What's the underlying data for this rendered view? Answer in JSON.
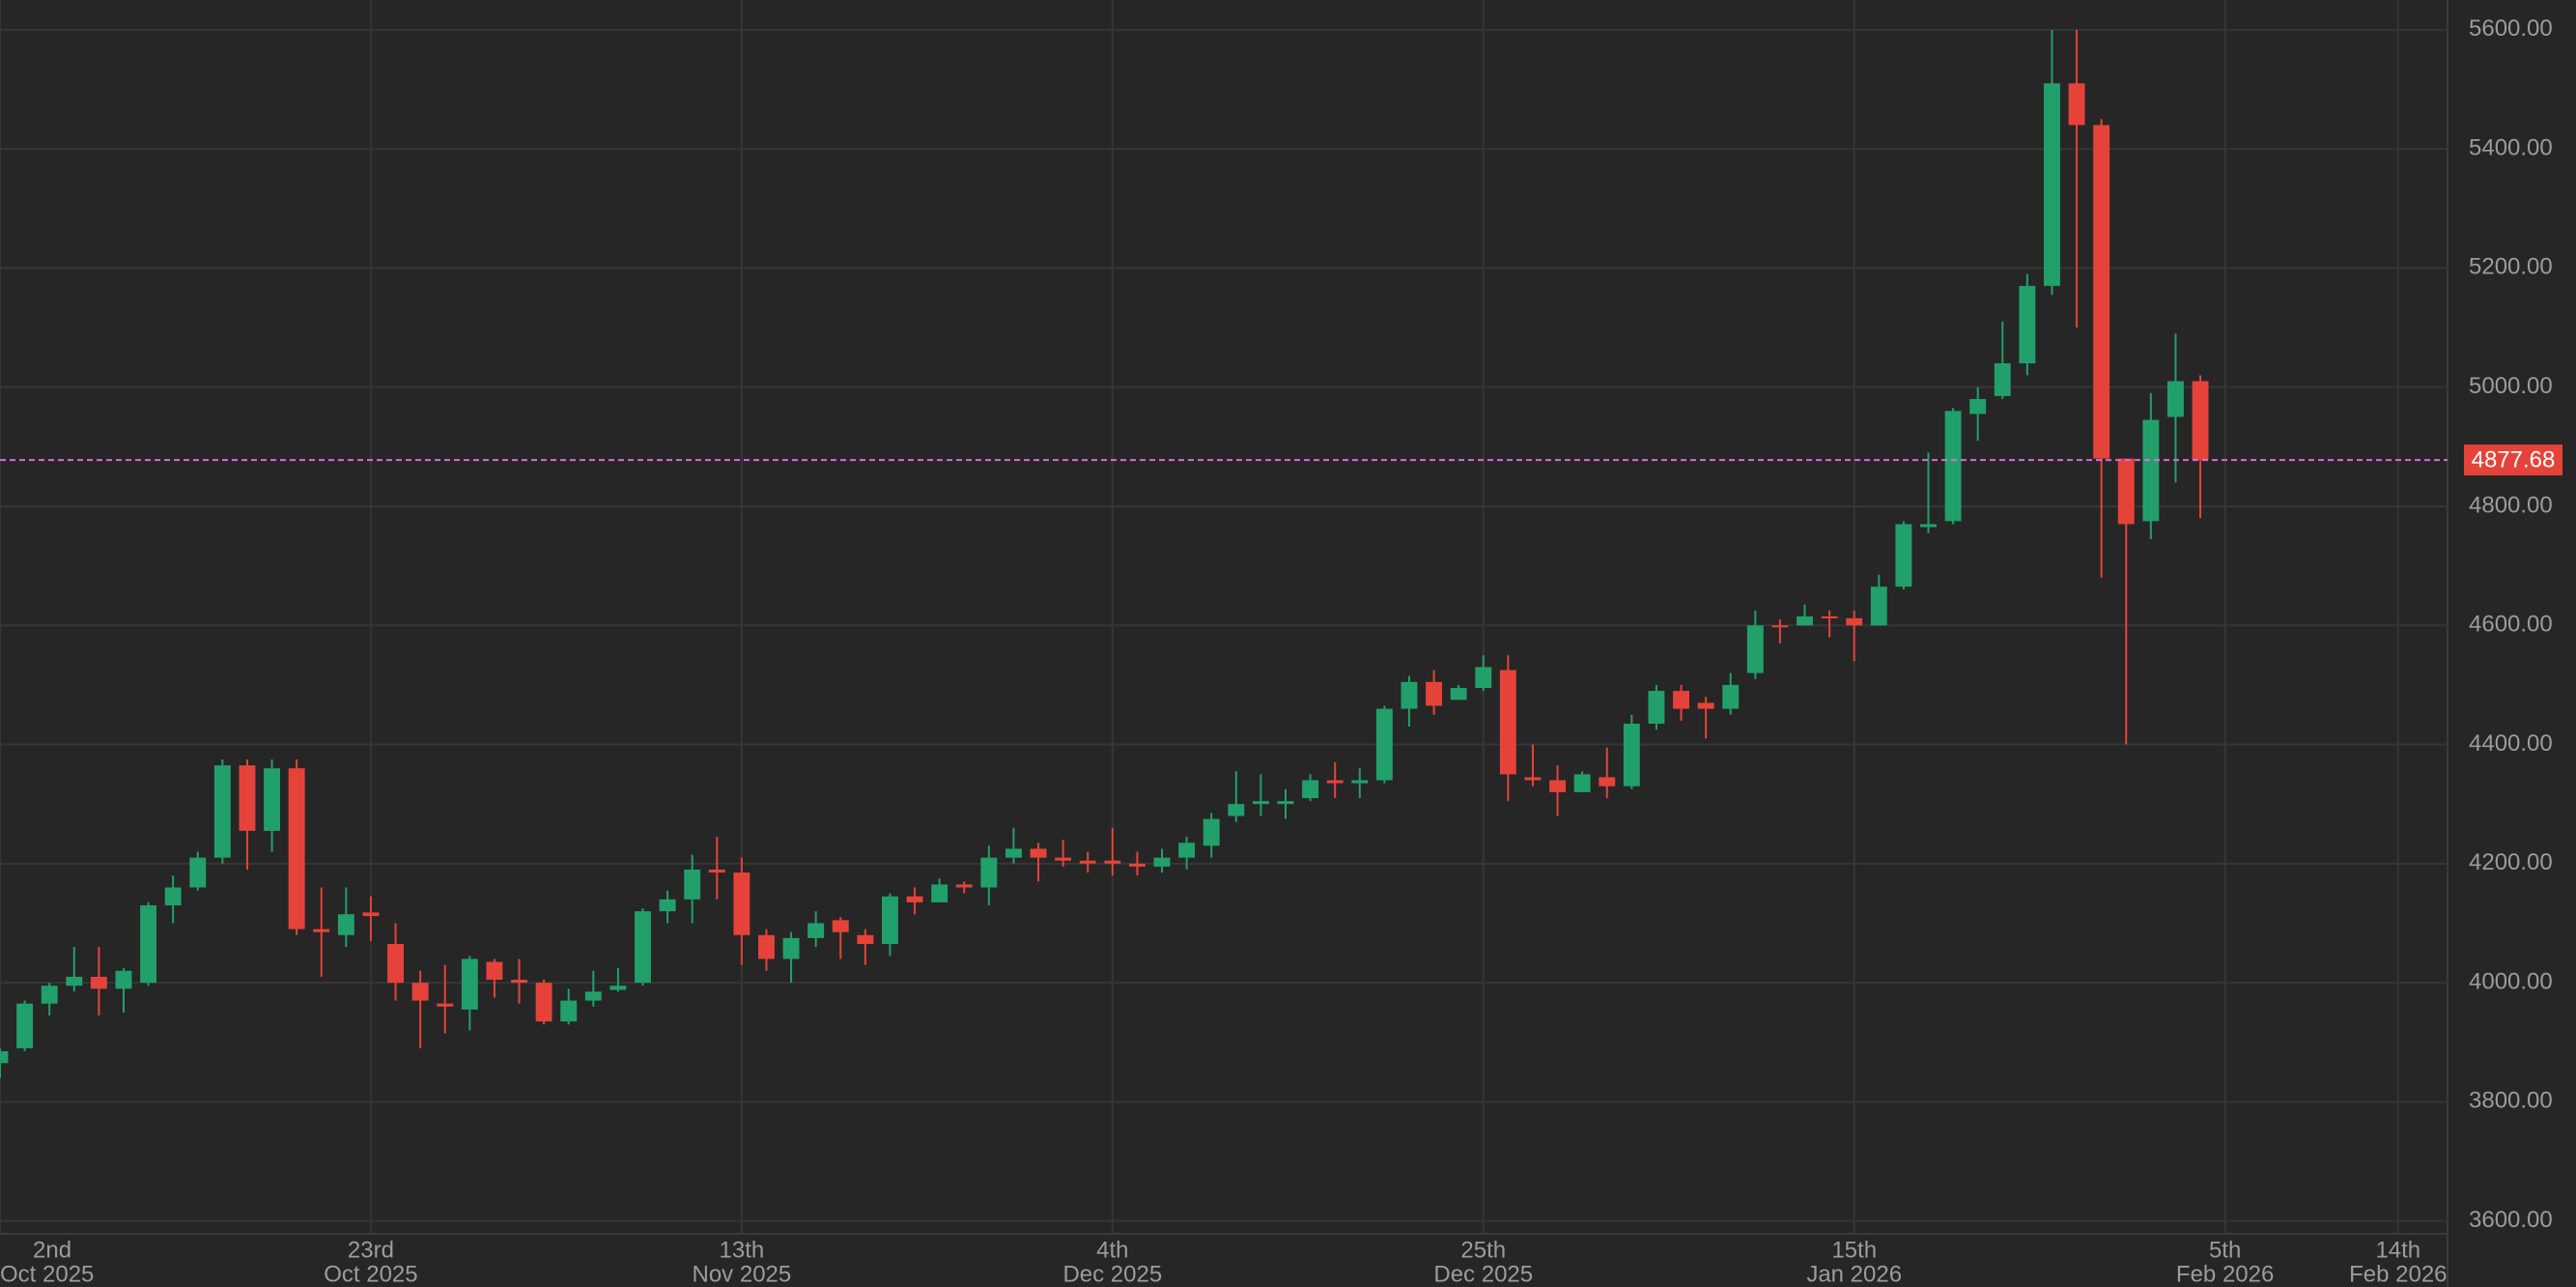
{
  "chart_data": {
    "type": "candlestick",
    "categories": [
      "2nd",
      null,
      null,
      null,
      null,
      null,
      null,
      null,
      null,
      null,
      null,
      null,
      null,
      null,
      null,
      "23rd",
      null,
      null,
      null,
      null,
      null,
      null,
      null,
      null,
      null,
      null,
      null,
      null,
      null,
      null,
      "13th",
      null,
      null,
      null,
      null,
      null,
      null,
      null,
      null,
      null,
      null,
      null,
      null,
      null,
      null,
      "4th",
      null,
      null,
      null,
      null,
      null,
      null,
      null,
      null,
      null,
      null,
      null,
      null,
      null,
      null,
      "25th",
      null,
      null,
      null,
      null,
      null,
      null,
      null,
      null,
      null,
      null,
      null,
      null,
      null,
      null,
      "15th",
      null,
      null,
      null,
      null,
      null,
      null,
      null,
      null,
      null,
      null,
      null,
      null,
      null,
      null,
      "5th",
      null,
      null,
      null,
      null,
      null,
      null,
      "14th",
      null
    ],
    "category_groups": [
      "Oct 2025",
      null,
      null,
      null,
      null,
      null,
      null,
      null,
      null,
      null,
      null,
      null,
      null,
      null,
      null,
      "Oct 2025",
      null,
      null,
      null,
      null,
      null,
      null,
      null,
      null,
      null,
      null,
      null,
      null,
      null,
      null,
      "Nov 2025",
      null,
      null,
      null,
      null,
      null,
      null,
      null,
      null,
      null,
      null,
      null,
      null,
      null,
      null,
      "Dec 2025",
      null,
      null,
      null,
      null,
      null,
      null,
      null,
      null,
      null,
      null,
      null,
      null,
      null,
      null,
      "Dec 2025",
      null,
      null,
      null,
      null,
      null,
      null,
      null,
      null,
      null,
      null,
      null,
      null,
      null,
      null,
      "Jan 2026",
      null,
      null,
      null,
      null,
      null,
      null,
      null,
      null,
      null,
      null,
      null,
      null,
      null,
      null,
      "Feb 2026",
      null,
      null,
      null,
      null,
      null,
      null,
      "Feb 2026",
      null
    ],
    "open": [
      3865,
      3890,
      3965,
      3995,
      4010,
      3990,
      4000,
      4130,
      4160,
      4210,
      4365,
      4255,
      4360,
      4090,
      4080,
      4118,
      4065,
      4000,
      3965,
      3955,
      4035,
      4005,
      4000,
      3935,
      3970,
      3988,
      4000,
      4120,
      4140,
      4190,
      4185,
      4080,
      4040,
      4075,
      4105,
      4080,
      4065,
      4145,
      4135,
      4165,
      4160,
      4210,
      4225,
      4210,
      4205,
      4205,
      4200,
      4195,
      4210,
      4230,
      4280,
      4300,
      4300,
      4310,
      4340,
      4335,
      4340,
      4460,
      4505,
      4475,
      4495,
      4525,
      4345,
      4340,
      4320,
      4345,
      4330,
      4435,
      4490,
      4470,
      4460,
      4520,
      4600,
      4600,
      4615,
      4612,
      4600,
      4665,
      4765,
      4775,
      4955,
      4985,
      5040,
      5170,
      5510,
      5440,
      4880,
      4775,
      4950,
      5010,
      null,
      null,
      null,
      null,
      null,
      null,
      null,
      null,
      null
    ],
    "high": [
      3890,
      3970,
      4000,
      4060,
      4060,
      4025,
      4135,
      4180,
      4220,
      4375,
      4375,
      4375,
      4375,
      4160,
      4160,
      4145,
      4100,
      4020,
      4030,
      4045,
      4040,
      4040,
      4005,
      3990,
      4020,
      4025,
      4125,
      4155,
      4215,
      4245,
      4210,
      4090,
      4085,
      4120,
      4110,
      4090,
      4150,
      4160,
      4175,
      4170,
      4230,
      4260,
      4235,
      4240,
      4220,
      4260,
      4220,
      4225,
      4245,
      4285,
      4355,
      4350,
      4325,
      4350,
      4370,
      4360,
      4465,
      4515,
      4525,
      4500,
      4550,
      4550,
      4400,
      4365,
      4355,
      4395,
      4450,
      4500,
      4500,
      4480,
      4520,
      4625,
      4610,
      4635,
      4625,
      4625,
      4685,
      4775,
      4890,
      4965,
      5000,
      5110,
      5190,
      5600,
      5600,
      5450,
      4880,
      4990,
      5090,
      5020,
      null,
      null,
      null,
      null,
      null,
      null,
      null,
      null,
      null
    ],
    "low": [
      3840,
      3885,
      3945,
      3985,
      3945,
      3950,
      3995,
      4100,
      4155,
      4200,
      4190,
      4220,
      4080,
      4010,
      4060,
      4070,
      3970,
      3890,
      3915,
      3920,
      3975,
      3965,
      3930,
      3930,
      3960,
      3985,
      3995,
      4100,
      4100,
      4140,
      4030,
      4020,
      4000,
      4060,
      4040,
      4030,
      4045,
      4115,
      4135,
      4150,
      4130,
      4200,
      4170,
      4195,
      4185,
      4180,
      4180,
      4185,
      4190,
      4210,
      4270,
      4280,
      4275,
      4305,
      4310,
      4310,
      4335,
      4430,
      4450,
      4475,
      4490,
      4305,
      4330,
      4280,
      4320,
      4310,
      4325,
      4425,
      4440,
      4410,
      4450,
      4510,
      4570,
      4600,
      4580,
      4540,
      4600,
      4660,
      4755,
      4770,
      4910,
      4980,
      5020,
      5155,
      5100,
      4680,
      4400,
      4745,
      4840,
      4780,
      null,
      null,
      null,
      null,
      null,
      null,
      null,
      null,
      null
    ],
    "close": [
      3885,
      3965,
      3995,
      4010,
      3990,
      4020,
      4130,
      4160,
      4210,
      4365,
      4255,
      4360,
      4090,
      4085,
      4115,
      4112,
      4000,
      3970,
      3960,
      4040,
      4005,
      4000,
      3935,
      3970,
      3985,
      3995,
      4120,
      4140,
      4190,
      4185,
      4080,
      4040,
      4075,
      4100,
      4085,
      4065,
      4145,
      4135,
      4165,
      4160,
      4210,
      4225,
      4210,
      4205,
      4200,
      4200,
      4195,
      4210,
      4235,
      4275,
      4300,
      4305,
      4305,
      4340,
      4335,
      4340,
      4460,
      4505,
      4465,
      4495,
      4530,
      4350,
      4340,
      4320,
      4350,
      4330,
      4435,
      4490,
      4460,
      4460,
      4500,
      4600,
      4598,
      4615,
      4612,
      4600,
      4665,
      4770,
      4770,
      4960,
      4980,
      5040,
      5170,
      5510,
      5440,
      4880,
      4770,
      4945,
      5010,
      4878,
      null,
      null,
      null,
      null,
      null,
      null,
      null,
      null,
      null
    ],
    "up_color": "#22a06b",
    "down_color": "#e5433a",
    "last_price": 4877.68,
    "last_price_color": "#d86bd8",
    "ylim": [
      3580,
      5650
    ],
    "yticks": [
      {
        "value": 3600,
        "label": "3600.00"
      },
      {
        "value": 3800,
        "label": "3800.00"
      },
      {
        "value": 4000,
        "label": "4000.00"
      },
      {
        "value": 4200,
        "label": "4200.00"
      },
      {
        "value": 4400,
        "label": "4400.00"
      },
      {
        "value": 4600,
        "label": "4600.00"
      },
      {
        "value": 4800,
        "label": "4800.00"
      },
      {
        "value": 5000,
        "label": "5000.00"
      },
      {
        "value": 5200,
        "label": "5200.00"
      },
      {
        "value": 5400,
        "label": "5400.00"
      },
      {
        "value": 5600,
        "label": "5600.00"
      }
    ],
    "grid": true
  }
}
